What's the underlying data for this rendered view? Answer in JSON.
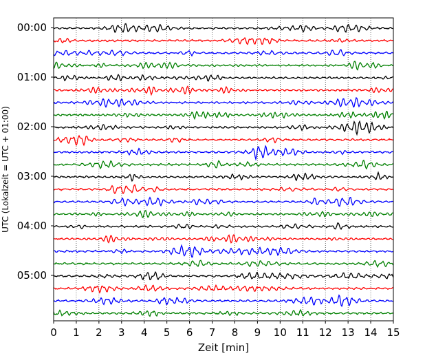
{
  "chart_data": {
    "type": "line",
    "title": "",
    "xlabel": "Zeit  [min]",
    "ylabel": "UTC (Lokalzeit = UTC + 01:00)",
    "xlim": [
      0,
      15
    ],
    "x_ticks": [
      "0",
      "1",
      "2",
      "3",
      "4",
      "5",
      "6",
      "7",
      "8",
      "9",
      "10",
      "11",
      "12",
      "13",
      "14",
      "15"
    ],
    "y_ticks": [
      "00:00",
      "01:00",
      "02:00",
      "03:00",
      "04:00",
      "05:00"
    ],
    "trace_interval_minutes": 15,
    "trace_count": 24,
    "trace_color_cycle": [
      "#000000",
      "#ff0000",
      "#0000ff",
      "#008000"
    ],
    "grid": "vertical dotted",
    "legend": "none"
  }
}
